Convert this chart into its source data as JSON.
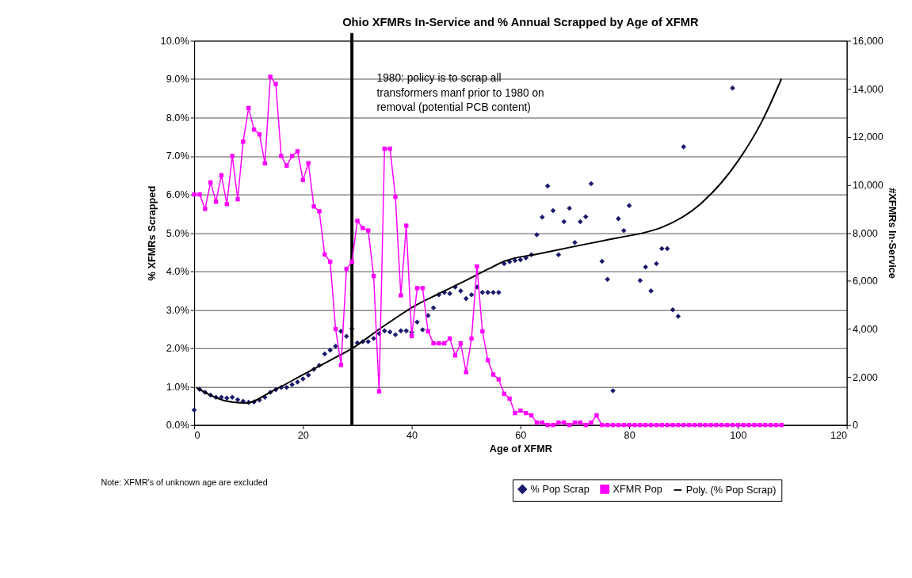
{
  "chart_data": {
    "type": "scatter",
    "title": "Ohio XFMRs In-Service and % Annual Scrapped by Age of XFMR",
    "xlabel": "Age of XFMR",
    "ylabel": "% XFMRs Scrapped",
    "y2label": "#XFMRs In-Service",
    "xlim": [
      0,
      120
    ],
    "xticks": [
      0,
      20,
      40,
      60,
      80,
      100,
      120
    ],
    "ylim": [
      0,
      10
    ],
    "yticks": [
      {
        "value": 0,
        "label": "0.0%"
      },
      {
        "value": 1,
        "label": "1.0%"
      },
      {
        "value": 2,
        "label": "2.0%"
      },
      {
        "value": 3,
        "label": "3.0%"
      },
      {
        "value": 4,
        "label": "4.0%"
      },
      {
        "value": 5,
        "label": "5.0%"
      },
      {
        "value": 6,
        "label": "6.0%"
      },
      {
        "value": 7,
        "label": "7.0%"
      },
      {
        "value": 8,
        "label": "8.0%"
      },
      {
        "value": 9,
        "label": "9.0%"
      },
      {
        "value": 10,
        "label": "10.0%"
      }
    ],
    "y2lim": [
      0,
      16000
    ],
    "y2ticks": [
      0,
      {
        "value": 2000,
        "label": "2,000"
      },
      {
        "value": 4000,
        "label": "4,000"
      },
      {
        "value": 6000,
        "label": "6,000"
      },
      {
        "value": 8000,
        "label": "8,000"
      },
      {
        "value": 10000,
        "label": "10,000"
      },
      {
        "value": 12000,
        "label": "12,000"
      },
      {
        "value": 14000,
        "label": "14,000"
      },
      {
        "value": 16000,
        "label": "16,000"
      }
    ],
    "grid": "y",
    "legend": "bottom right",
    "series": [
      {
        "name": "% Pop Scrap",
        "marker": "diamond",
        "color": "#1a1a6e",
        "x": [
          0,
          1,
          2,
          3,
          4,
          5,
          6,
          7,
          8,
          9,
          10,
          11,
          12,
          13,
          14,
          15,
          16,
          17,
          18,
          19,
          20,
          21,
          22,
          23,
          24,
          25,
          26,
          27,
          28,
          29,
          30,
          31,
          32,
          33,
          34,
          35,
          36,
          37,
          38,
          39,
          40,
          41,
          42,
          43,
          44,
          45,
          46,
          47,
          48,
          49,
          50,
          51,
          52,
          53,
          54,
          55,
          56,
          57,
          58,
          59,
          60,
          61,
          62,
          63,
          64,
          65,
          66,
          67,
          68,
          69,
          70,
          71,
          72,
          73,
          75,
          76,
          77,
          78,
          79,
          80,
          82,
          83,
          84,
          85,
          86,
          87,
          88,
          89,
          90,
          99
        ],
        "values": [
          0.39,
          0.93,
          0.85,
          0.78,
          0.72,
          0.72,
          0.7,
          0.72,
          0.66,
          0.62,
          0.59,
          0.6,
          0.65,
          0.72,
          0.85,
          0.92,
          0.98,
          0.98,
          1.05,
          1.12,
          1.2,
          1.3,
          1.45,
          1.55,
          1.85,
          1.95,
          2.05,
          2.44,
          2.31,
          2.51,
          2.14,
          2.17,
          2.17,
          2.25,
          2.38,
          2.45,
          2.42,
          2.35,
          2.45,
          2.45,
          2.41,
          2.68,
          2.48,
          2.85,
          3.05,
          3.39,
          3.45,
          3.42,
          3.59,
          3.49,
          3.29,
          3.39,
          3.59,
          3.45,
          3.45,
          3.45,
          3.45,
          4.2,
          4.25,
          4.28,
          4.3,
          4.35,
          4.43,
          4.95,
          5.41,
          6.22,
          5.58,
          4.43,
          5.29,
          5.64,
          4.75,
          5.29,
          5.42,
          6.28,
          4.26,
          3.79,
          0.89,
          5.37,
          5.06,
          5.71,
          3.76,
          4.11,
          3.49,
          4.2,
          4.59,
          4.59,
          3.0,
          2.83,
          7.24,
          8.77
        ]
      },
      {
        "name": "XFMR Pop",
        "type": "line",
        "axis": "y2",
        "marker": "square",
        "color": "#ff00ff",
        "x": [
          0,
          1,
          2,
          3,
          4,
          5,
          6,
          7,
          8,
          9,
          10,
          11,
          12,
          13,
          14,
          15,
          16,
          17,
          18,
          19,
          20,
          21,
          22,
          23,
          24,
          25,
          26,
          27,
          28,
          29,
          30,
          31,
          32,
          33,
          34,
          35,
          36,
          37,
          38,
          39,
          40,
          41,
          42,
          43,
          44,
          45,
          46,
          47,
          48,
          49,
          50,
          51,
          52,
          53,
          54,
          55,
          56,
          57,
          58,
          59,
          60,
          61,
          62,
          63,
          64,
          65,
          66,
          67,
          68,
          69,
          70,
          71,
          72,
          73,
          74,
          75,
          76,
          77,
          78,
          79,
          80,
          81,
          82,
          83,
          84,
          85,
          86,
          87,
          88,
          89,
          90,
          91,
          92,
          93,
          94,
          95,
          96,
          97,
          98,
          99,
          100,
          101,
          102,
          103,
          104,
          105,
          106,
          107,
          108
        ],
        "values": [
          9600,
          9600,
          9000,
          10100,
          9300,
          10400,
          9200,
          11200,
          9400,
          11800,
          13200,
          12300,
          12100,
          10900,
          14500,
          14200,
          11200,
          10800,
          11200,
          11400,
          10200,
          10900,
          9100,
          8900,
          7100,
          6800,
          4000,
          2500,
          6500,
          6800,
          8500,
          8200,
          8100,
          6200,
          1400,
          11500,
          11500,
          9500,
          5400,
          8300,
          3700,
          5700,
          5700,
          3900,
          3400,
          3400,
          3400,
          3600,
          2900,
          3400,
          2200,
          3600,
          6600,
          3900,
          2700,
          2100,
          1900,
          1300,
          1100,
          500,
          600,
          500,
          400,
          100,
          100,
          0,
          0,
          100,
          100,
          0,
          100,
          100,
          0,
          100,
          400,
          0,
          0,
          0,
          0,
          0,
          0,
          0,
          0,
          0,
          0,
          0,
          0,
          0,
          0,
          0,
          0,
          0,
          0,
          0,
          0,
          0,
          0,
          0,
          0,
          0,
          0,
          0,
          0,
          0,
          0,
          0,
          0,
          0,
          0
        ]
      },
      {
        "name": "Poly. (% Pop Scrap)",
        "type": "line",
        "marker": "none",
        "color": "#000000",
        "x": [
          0.4,
          5.7,
          9.5,
          14.2,
          19.9,
          25.2,
          28.9,
          34.6,
          40.8,
          44.6,
          49.4,
          54.1,
          57,
          63.6,
          70.7,
          77.8,
          82.6,
          85.9,
          93,
          100.1,
          104.4,
          108
        ],
        "values": [
          0.97,
          0.63,
          0.57,
          0.87,
          1.3,
          1.7,
          1.98,
          2.55,
          3.12,
          3.39,
          3.72,
          4.06,
          4.26,
          4.46,
          4.67,
          4.87,
          5.0,
          5.14,
          5.74,
          6.89,
          7.9,
          9.01
        ]
      }
    ],
    "ref_lines": [
      {
        "axis": "x",
        "value": 29,
        "color": "#000000"
      }
    ],
    "annotations": [
      {
        "text": "1980: policy is to scrap all transformers manf prior to 1980 on removal (potential PCB content)",
        "x": 29,
        "y": 9
      },
      "Note: XFMR's of unknown age are excluded"
    ]
  }
}
